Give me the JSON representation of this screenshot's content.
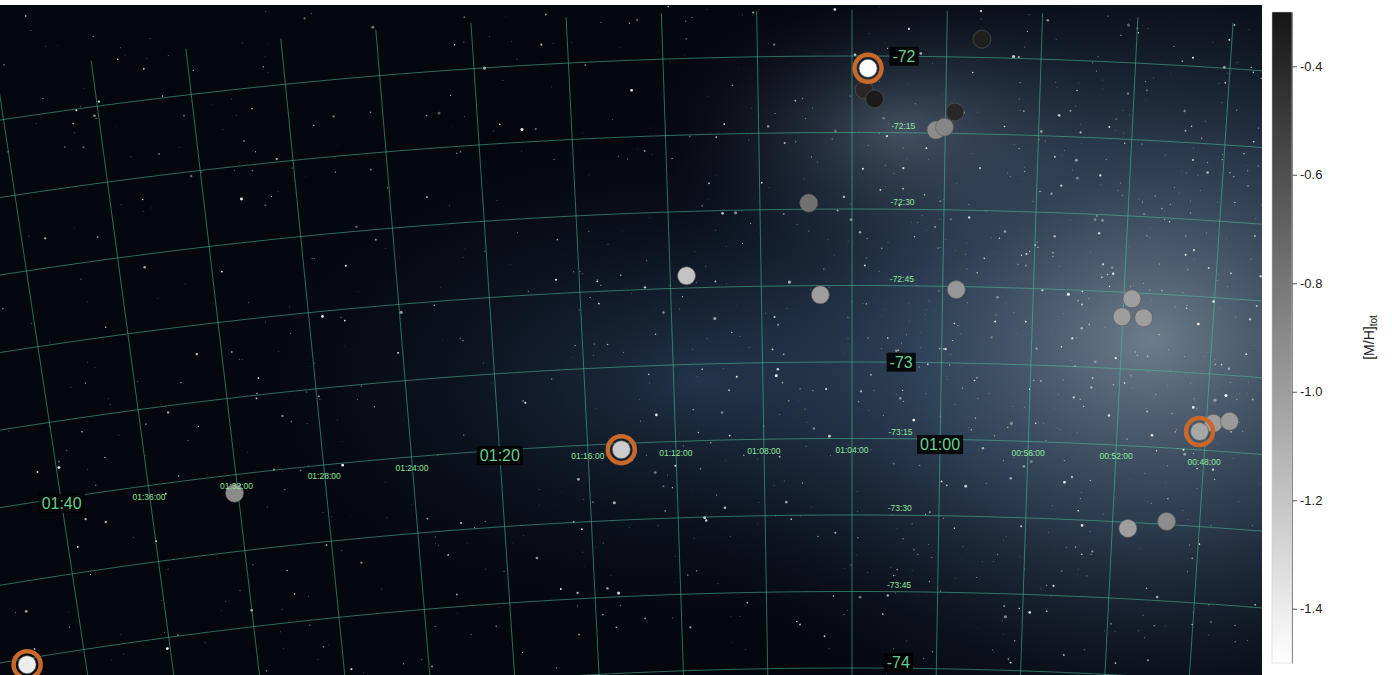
{
  "chart_data": {
    "type": "scatter",
    "grid": true,
    "x": [
      15.83,
      14.63,
      15.87,
      15.76,
      14.9,
      15.1,
      15.01,
      16.47,
      17.82,
      16.35,
      14.85,
      12.91,
      13.01,
      12.77,
      12.07,
      11.92,
      11.74,
      18.62,
      23.04,
      12.82,
      12.38,
      25.68
    ],
    "y": [
      -72.04,
      -71.94,
      -72.11,
      -72.14,
      -72.18,
      -72.24,
      -72.23,
      -72.48,
      -72.71,
      -72.78,
      -72.76,
      -72.77,
      -72.83,
      -72.83,
      -73.19,
      -73.16,
      -73.15,
      -73.27,
      -73.31,
      -73.52,
      -73.49,
      -73.77
    ],
    "metallicity": [
      -1.5,
      -0.35,
      -0.4,
      -0.33,
      -0.4,
      -0.91,
      -0.88,
      -0.77,
      -1.19,
      -1.0,
      -0.96,
      -1.0,
      -1.0,
      -1.0,
      -1.05,
      -1.0,
      -0.98,
      -1.24,
      -0.91,
      -1.0,
      -0.91,
      -1.41
    ],
    "highlight": [
      true,
      false,
      false,
      false,
      false,
      false,
      false,
      false,
      false,
      false,
      false,
      false,
      false,
      false,
      true,
      false,
      false,
      true,
      false,
      false,
      false,
      true
    ],
    "xlim": [
      11,
      26
    ],
    "ylim": [
      -74.1,
      -71.85
    ],
    "xticks": [
      {
        "value": 25,
        "label": "01:40"
      },
      {
        "value": 24,
        "label": "01:36:00"
      },
      {
        "value": 23,
        "label": "01:32:00"
      },
      {
        "value": 22,
        "label": "01:28:00"
      },
      {
        "value": 21,
        "label": "01:24:00"
      },
      {
        "value": 20,
        "label": "01:20"
      },
      {
        "value": 19,
        "label": "01:16:00"
      },
      {
        "value": 18,
        "label": "01:12:00"
      },
      {
        "value": 17,
        "label": "01:08:00"
      },
      {
        "value": 16,
        "label": "01:04:00"
      },
      {
        "value": 15,
        "label": "01:00"
      },
      {
        "value": 14,
        "label": "00:56:00"
      },
      {
        "value": 13,
        "label": "00:52:00"
      },
      {
        "value": 12,
        "label": "00:48:00"
      }
    ],
    "yticks": [
      -74,
      {
        "value": -73.75,
        "label": "-73:45"
      },
      {
        "value": -73.5,
        "label": "-73:30"
      },
      {
        "value": -73.25,
        "label": "-73:15"
      },
      -73,
      {
        "value": -72.75,
        "label": "-72:45"
      },
      {
        "value": -72.5,
        "label": "-72:30"
      },
      {
        "value": -72.25,
        "label": "-72:15"
      },
      -72
    ],
    "colorbar": {
      "label": "[M/H]",
      "label_subscript": "tot",
      "range": [
        -1.5,
        -0.3
      ],
      "ticks": [
        -0.4,
        -0.6,
        -0.8,
        {
          "value": -1,
          "label": "-1.0"
        },
        -1.2,
        -1.4
      ]
    }
  }
}
